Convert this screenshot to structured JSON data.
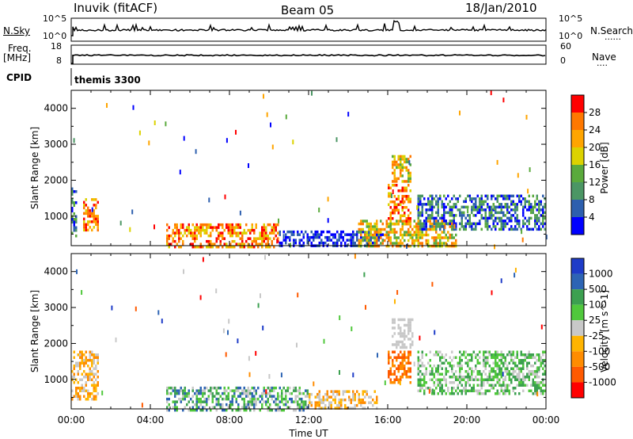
{
  "header": {
    "station": "Inuvik (fitACF)",
    "beam": "Beam 05",
    "date": "18/Jan/2010"
  },
  "panel_labels": {
    "nsky": "N.Sky",
    "nsearch": "N.Search",
    "nsearch_dots": "......",
    "freq_line1": "Freq.",
    "freq_line2": "[MHz]",
    "nave": "Nave",
    "nave_dots": "....",
    "cpid": "CPID",
    "cpid_value": "themis 3300"
  },
  "small_axes": {
    "noise_left_ticks": [
      "10^5",
      "10^0"
    ],
    "noise_right_ticks": [
      "10^5",
      "10^0"
    ],
    "freq_left_ticks": [
      "18",
      "8"
    ],
    "nave_right_ticks": [
      "60",
      "0"
    ]
  },
  "colors": {
    "power_scale": [
      "#0000ff",
      "#2d5fae",
      "#4b9664",
      "#5aaa3c",
      "#dcd200",
      "#ffa500",
      "#ff7800",
      "#ff0000"
    ],
    "velocity_scale": [
      "#ff0000",
      "#ff5a00",
      "#ff8c00",
      "#ffb400",
      "#c8c8c8",
      "#50c83c",
      "#3ca050",
      "#2d64b4",
      "#1e3cc8"
    ]
  },
  "chart_data": [
    {
      "type": "heatmap",
      "title": "Power",
      "xlabel": "",
      "ylabel": "Slant Range [km]",
      "x_ticks": [
        "00:00",
        "04:00",
        "08:00",
        "12:00",
        "16:00",
        "20:00",
        "00:00"
      ],
      "y_ticks": [
        1000,
        2000,
        3000,
        4000
      ],
      "ylim": [
        180,
        4500
      ],
      "colorbar": {
        "label": "Power [dB]",
        "ticks": [
          4,
          8,
          12,
          16,
          20,
          24,
          28
        ],
        "range": [
          0,
          32
        ]
      },
      "regions": [
        {
          "t_start": 0.0,
          "t_end": 0.3,
          "r_min": 450,
          "r_max": 1800,
          "level": "low-mid"
        },
        {
          "t_start": 0.6,
          "t_end": 1.4,
          "r_min": 600,
          "r_max": 1500,
          "level": "high"
        },
        {
          "t_start": 4.8,
          "t_end": 10.5,
          "r_min": 180,
          "r_max": 800,
          "level": "high"
        },
        {
          "t_start": 10.5,
          "t_end": 15.8,
          "r_min": 180,
          "r_max": 600,
          "level": "low"
        },
        {
          "t_start": 16.0,
          "t_end": 17.2,
          "r_min": 800,
          "r_max": 1900,
          "level": "high"
        },
        {
          "t_start": 16.2,
          "t_end": 17.2,
          "r_min": 2000,
          "r_max": 2700,
          "level": "mid-high"
        },
        {
          "t_start": 14.5,
          "t_end": 19.5,
          "r_min": 180,
          "r_max": 900,
          "level": "mid-high"
        },
        {
          "t_start": 17.5,
          "t_end": 24.0,
          "r_min": 600,
          "r_max": 1600,
          "level": "low-mid"
        }
      ]
    },
    {
      "type": "heatmap",
      "title": "Velocity",
      "xlabel": "Time UT",
      "ylabel": "Slant Range [km]",
      "x_ticks": [
        "00:00",
        "04:00",
        "08:00",
        "12:00",
        "16:00",
        "20:00",
        "00:00"
      ],
      "y_ticks": [
        1000,
        2000,
        3000,
        4000
      ],
      "ylim": [
        180,
        4500
      ],
      "colorbar": {
        "label": "Velocity [m s^-1]",
        "ticks": [
          -1000,
          -500,
          -100,
          -25,
          25,
          100,
          500,
          1000
        ]
      },
      "regions": [
        {
          "t_start": 0.0,
          "t_end": 1.4,
          "r_min": 450,
          "r_max": 1800,
          "level": "-100 to 25"
        },
        {
          "t_start": 4.8,
          "t_end": 12.0,
          "r_min": 180,
          "r_max": 800,
          "level": "25 to 500"
        },
        {
          "t_start": 12.0,
          "t_end": 15.5,
          "r_min": 180,
          "r_max": 700,
          "level": "-100 to 25"
        },
        {
          "t_start": 16.0,
          "t_end": 17.2,
          "r_min": 900,
          "r_max": 1800,
          "level": "-500 to -100"
        },
        {
          "t_start": 16.2,
          "t_end": 17.3,
          "r_min": 1900,
          "r_max": 2700,
          "level": "-25 to 25"
        },
        {
          "t_start": 17.5,
          "t_end": 24.0,
          "r_min": 600,
          "r_max": 1800,
          "level": "25 to 100"
        }
      ]
    }
  ]
}
